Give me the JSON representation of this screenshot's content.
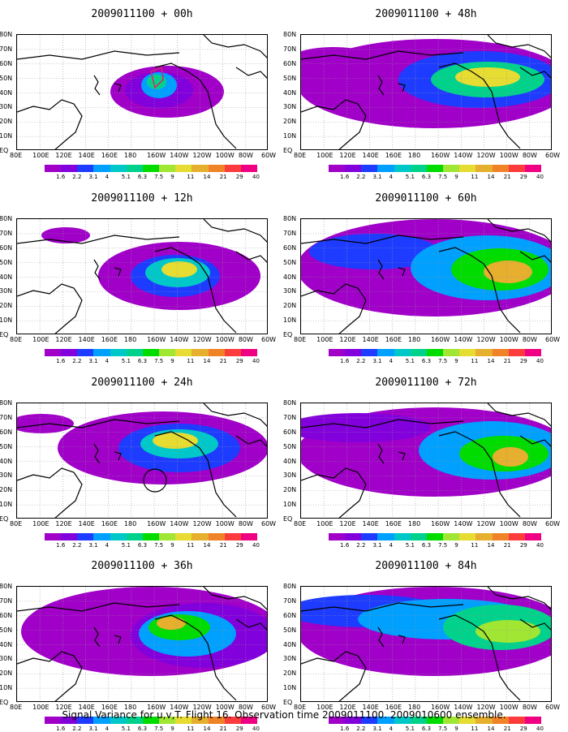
{
  "panels": [
    {
      "title": "2009011100 + 00h",
      "intensity": 0
    },
    {
      "title": "2009011100 + 12h",
      "intensity": 1
    },
    {
      "title": "2009011100 + 24h",
      "intensity": 2
    },
    {
      "title": "2009011100 + 36h",
      "intensity": 3
    },
    {
      "title": "2009011100 + 48h",
      "intensity": 4
    },
    {
      "title": "2009011100 + 60h",
      "intensity": 5
    },
    {
      "title": "2009011100 + 72h",
      "intensity": 6
    },
    {
      "title": "2009011100 + 84h",
      "intensity": 7
    }
  ],
  "lat_labels": [
    "80N",
    "70N",
    "60N",
    "50N",
    "40N",
    "30N",
    "20N",
    "10N",
    "EQ"
  ],
  "lon_labels": [
    "80E",
    "100E",
    "120E",
    "140E",
    "160E",
    "180",
    "160W",
    "140W",
    "120W",
    "100W",
    "80W",
    "60W"
  ],
  "colorbar": {
    "labels": [
      "1.6",
      "2.2",
      "3.1",
      "4",
      "5.1",
      "6.3",
      "7.5",
      "9",
      "11",
      "14",
      "21",
      "29",
      "40"
    ],
    "colors": [
      "#a000c8",
      "#8200dc",
      "#1e3cff",
      "#00a0ff",
      "#00c8c8",
      "#00d28c",
      "#00dc00",
      "#a0e632",
      "#e6dc32",
      "#e6af2d",
      "#f08228",
      "#fa3c3c",
      "#f00082"
    ]
  },
  "caption": "Signal Variance for u,v,T. Flight 16. Observation time 2009011100. 2009010600 ensemble."
}
